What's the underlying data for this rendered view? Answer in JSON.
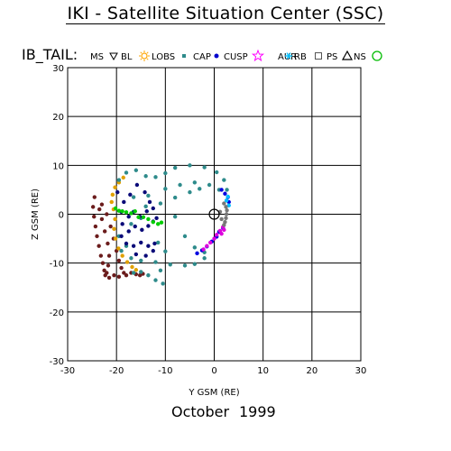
{
  "page": {
    "title": "IKI - Satellite Situation Center (SSC)",
    "footer_month": "October",
    "footer_year": "1999"
  },
  "legend": {
    "heading": "IB_TAIL:",
    "items": [
      {
        "label": "MS",
        "marker": "triangle-down",
        "color": "#000000"
      },
      {
        "label": "BL",
        "marker": "sun",
        "color": "#ffa500"
      },
      {
        "label": "LOBS",
        "marker": "small-square",
        "color": "#2e8b8b"
      },
      {
        "label": "CAP",
        "marker": "dot",
        "color": "#0000cd"
      },
      {
        "label": "CUSP",
        "marker": "star",
        "color": "#ff00ff"
      },
      {
        "label": "AUR",
        "marker": "asterisk",
        "color": "#00bfff"
      },
      {
        "label": "RB",
        "marker": "open-square",
        "color": "#555555"
      },
      {
        "label": "PS",
        "marker": "triangle-up",
        "color": "#000000"
      },
      {
        "label": "NS",
        "marker": "circle",
        "color": "#00bb00"
      }
    ]
  },
  "chart_data": {
    "type": "scatter",
    "title": "IKI - Satellite Situation Center (SSC)",
    "xlabel": "Y GSM (RE)",
    "ylabel": "Z GSM (RE)",
    "xlim": [
      -30,
      30
    ],
    "ylim": [
      -30,
      30
    ],
    "xticks": [
      -30,
      -20,
      -10,
      0,
      10,
      20,
      30
    ],
    "yticks": [
      -30,
      -20,
      -10,
      0,
      10,
      20,
      30
    ],
    "grid": true,
    "earth_marker": {
      "x": 0,
      "y": 0,
      "symbol": "circle-cross"
    },
    "series": [
      {
        "name": "MS",
        "color": "#6b1c1c",
        "marker": "triangle-down",
        "points": [
          [
            -24.5,
            3.5
          ],
          [
            -24.8,
            1.5
          ],
          [
            -24.6,
            -0.5
          ],
          [
            -24.3,
            -2.5
          ],
          [
            -24.0,
            -4.5
          ],
          [
            -23.6,
            -6.5
          ],
          [
            -23.2,
            -8.5
          ],
          [
            -22.8,
            -10.0
          ],
          [
            -22.5,
            -11.5
          ],
          [
            -22.3,
            -12.5
          ],
          [
            -22.0,
            -12.0
          ],
          [
            -21.7,
            -10.5
          ],
          [
            -21.5,
            -8.5
          ],
          [
            -21.8,
            -6.0
          ],
          [
            -22.4,
            -3.5
          ],
          [
            -23.0,
            -1.0
          ],
          [
            -23.5,
            1.0
          ],
          [
            -23.0,
            2.0
          ],
          [
            -22.0,
            0.0
          ],
          [
            -21.2,
            -2.5
          ],
          [
            -20.6,
            -5.0
          ],
          [
            -20.0,
            -7.5
          ],
          [
            -19.5,
            -9.5
          ],
          [
            -19.0,
            -11.0
          ],
          [
            -18.5,
            -12.0
          ],
          [
            -18.0,
            -12.5
          ],
          [
            -17.0,
            -12.0
          ],
          [
            -16.0,
            -12.3
          ],
          [
            -15.2,
            -12.5
          ],
          [
            -14.6,
            -12.2
          ],
          [
            -21.5,
            -13.0
          ],
          [
            -20.5,
            -12.5
          ],
          [
            -19.5,
            -12.8
          ]
        ]
      },
      {
        "name": "BL",
        "color": "#e0a000",
        "marker": "sun",
        "points": [
          [
            -20.3,
            5.5
          ],
          [
            -20.8,
            4.0
          ],
          [
            -21.0,
            2.5
          ],
          [
            -20.6,
            1.0
          ],
          [
            -20.3,
            -1.0
          ],
          [
            -20.5,
            -3.0
          ],
          [
            -20.2,
            -5.0
          ],
          [
            -19.6,
            -7.0
          ],
          [
            -18.8,
            -8.5
          ],
          [
            -17.8,
            -9.8
          ],
          [
            -16.8,
            -10.8
          ],
          [
            -16.0,
            -11.4
          ],
          [
            -19.5,
            6.5
          ],
          [
            -18.6,
            7.5
          ]
        ]
      },
      {
        "name": "LOBS",
        "color": "#2e8b8b",
        "marker": "small-square",
        "points": [
          [
            -19.5,
            7.0
          ],
          [
            -18.0,
            8.5
          ],
          [
            -16.0,
            9.0
          ],
          [
            -14.0,
            7.8
          ],
          [
            -12.0,
            7.6
          ],
          [
            -10.0,
            8.4
          ],
          [
            -8.0,
            9.5
          ],
          [
            -5.0,
            10.0
          ],
          [
            -2.0,
            9.6
          ],
          [
            0.5,
            8.6
          ],
          [
            2.0,
            7.0
          ],
          [
            2.6,
            5.0
          ],
          [
            -16.5,
            3.5
          ],
          [
            -13.5,
            3.8
          ],
          [
            -10.0,
            5.2
          ],
          [
            -7.0,
            6.0
          ],
          [
            -4.0,
            6.5
          ],
          [
            -1.0,
            6.0
          ],
          [
            1.0,
            5.0
          ],
          [
            -14.0,
            1.6
          ],
          [
            -11.0,
            2.2
          ],
          [
            -8.0,
            3.4
          ],
          [
            -5.0,
            4.5
          ],
          [
            -3.0,
            5.2
          ],
          [
            -8.0,
            -0.5
          ],
          [
            -6.0,
            -4.5
          ],
          [
            -4.0,
            -6.8
          ],
          [
            -2.0,
            -7.8
          ],
          [
            -19.0,
            -7.5
          ],
          [
            -17.0,
            -9.0
          ],
          [
            -15.0,
            -9.5
          ],
          [
            -12.0,
            -9.8
          ],
          [
            -9.0,
            -10.3
          ],
          [
            -6.0,
            -10.5
          ],
          [
            -4.0,
            -10.2
          ],
          [
            -2.0,
            -9.0
          ],
          [
            -13.5,
            -12.5
          ],
          [
            -12.0,
            -13.5
          ],
          [
            -10.5,
            -14.2
          ],
          [
            -16.5,
            -12.0
          ],
          [
            -15.0,
            -11.8
          ],
          [
            -18.0,
            -6.5
          ],
          [
            -19.5,
            -4.5
          ],
          [
            -17.0,
            -2.0
          ],
          [
            -15.0,
            -0.8
          ],
          [
            -11.5,
            -5.8
          ],
          [
            -10.0,
            -7.6
          ],
          [
            -11.0,
            -11.5
          ]
        ]
      },
      {
        "name": "CAP",
        "color": "#0a0a78",
        "marker": "dot",
        "points": [
          [
            -19.8,
            4.5
          ],
          [
            -18.5,
            2.5
          ],
          [
            -17.2,
            4.0
          ],
          [
            -15.8,
            6.0
          ],
          [
            -14.2,
            4.5
          ],
          [
            -13.2,
            2.5
          ],
          [
            -19.0,
            0.5
          ],
          [
            -17.5,
            -0.5
          ],
          [
            -16.5,
            0.5
          ],
          [
            -15.2,
            -0.5
          ],
          [
            -13.8,
            0.6
          ],
          [
            -12.5,
            1.2
          ],
          [
            -18.8,
            -2.0
          ],
          [
            -17.5,
            -3.5
          ],
          [
            -16.2,
            -2.5
          ],
          [
            -14.8,
            -3.2
          ],
          [
            -13.5,
            -2.4
          ],
          [
            -12.5,
            -1.5
          ],
          [
            -11.8,
            -0.8
          ],
          [
            -19.0,
            -4.5
          ],
          [
            -18.0,
            -6.0
          ],
          [
            -16.5,
            -6.5
          ],
          [
            -15.0,
            -5.8
          ],
          [
            -13.5,
            -6.5
          ],
          [
            -12.2,
            -6.0
          ],
          [
            -16.0,
            -8.2
          ],
          [
            -14.0,
            -8.5
          ],
          [
            -12.5,
            -7.5
          ]
        ]
      },
      {
        "name": "CUSP",
        "color": "#0000e0",
        "marker": "dot",
        "points": [
          [
            1.5,
            5.0
          ],
          [
            2.2,
            4.2
          ],
          [
            2.8,
            3.5
          ],
          [
            3.0,
            2.5
          ],
          [
            1.0,
            -3.6
          ],
          [
            0.5,
            -4.6
          ],
          [
            -0.5,
            -5.6
          ],
          [
            -1.5,
            -6.6
          ],
          [
            -2.5,
            -7.4
          ],
          [
            -3.5,
            -8.0
          ],
          [
            1.8,
            -2.8
          ]
        ]
      },
      {
        "name": "AUR",
        "color": "#dd00dd",
        "marker": "star",
        "points": [
          [
            1.8,
            -2.6
          ],
          [
            1.2,
            -3.4
          ],
          [
            0.5,
            -4.2
          ],
          [
            0.0,
            -5.0
          ],
          [
            -0.8,
            -5.8
          ],
          [
            -1.5,
            -6.5
          ],
          [
            -2.2,
            -7.2
          ],
          [
            1.5,
            -4.0
          ],
          [
            2.0,
            -3.2
          ]
        ]
      },
      {
        "name": "RB",
        "color": "#00bfff",
        "marker": "asterisk",
        "points": [
          [
            2.8,
            3.6
          ],
          [
            2.5,
            2.8
          ],
          [
            3.0,
            1.8
          ]
        ]
      },
      {
        "name": "PS",
        "color": "#777777",
        "marker": "open-square",
        "points": [
          [
            2.0,
            2.2
          ],
          [
            2.4,
            1.5
          ],
          [
            2.6,
            0.8
          ],
          [
            2.5,
            0.0
          ],
          [
            2.4,
            -0.8
          ],
          [
            2.2,
            -1.6
          ],
          [
            2.0,
            -2.2
          ],
          [
            1.5,
            -1.0
          ],
          [
            1.2,
            0.5
          ]
        ]
      },
      {
        "name": "NS",
        "color": "#00cc00",
        "marker": "circle",
        "points": [
          [
            -19.5,
            0.7
          ],
          [
            -18.8,
            0.6
          ],
          [
            -18.0,
            0.4
          ],
          [
            -17.0,
            0.2
          ],
          [
            -16.2,
            0.6
          ],
          [
            -15.5,
            -0.6
          ],
          [
            -14.5,
            -0.6
          ],
          [
            -13.5,
            -1.0
          ],
          [
            -12.5,
            -1.6
          ],
          [
            -11.5,
            -2.0
          ],
          [
            -10.8,
            -1.7
          ],
          [
            -20.2,
            1.2
          ]
        ]
      }
    ]
  }
}
